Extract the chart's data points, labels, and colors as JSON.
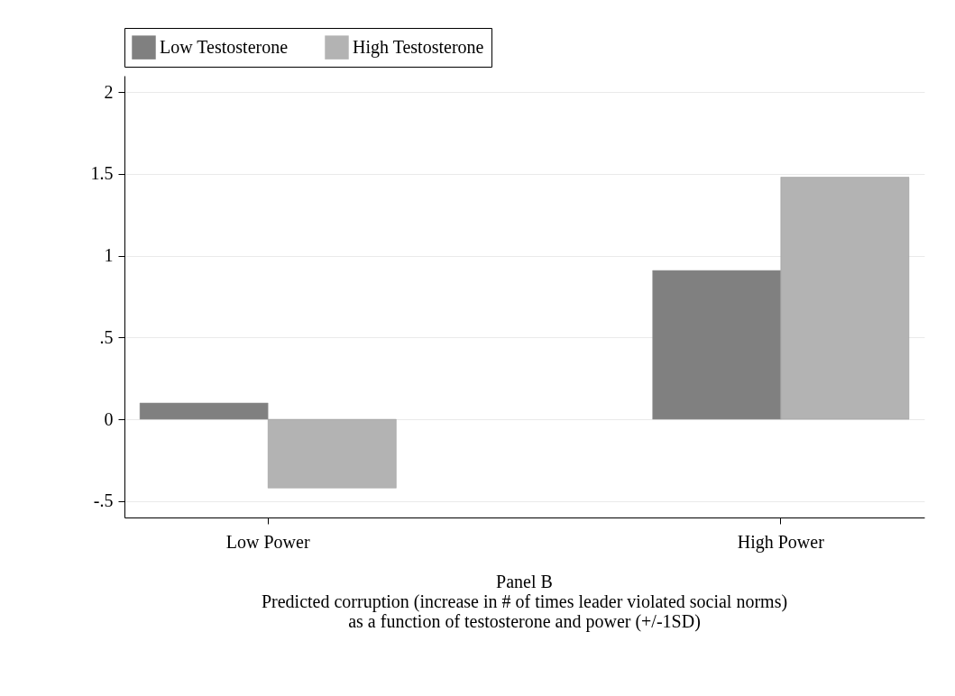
{
  "chart_data": {
    "type": "bar",
    "title": "Panel B",
    "subtitle": "Predicted corruption (increase in # of times leader violated social norms)\nas a function of testosterone and power (+/-1SD)",
    "categories": [
      "Low Power",
      "High Power"
    ],
    "series": [
      {
        "name": "Low Testosterone",
        "color": "#808080",
        "values": [
          0.1,
          0.91
        ]
      },
      {
        "name": "High Testosterone",
        "color": "#b3b3b3",
        "values": [
          -0.42,
          1.48
        ]
      }
    ],
    "ylim": [
      -0.6,
      2.1
    ],
    "yticks": [
      {
        "value": -0.5,
        "label": "-.5"
      },
      0,
      {
        "value": 0.5,
        "label": ".5"
      },
      1,
      1.5,
      2
    ],
    "grid": "y",
    "legend": "top"
  }
}
